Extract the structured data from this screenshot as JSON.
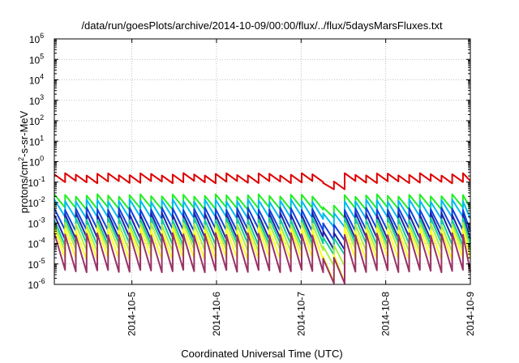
{
  "chart_data": {
    "type": "line",
    "title": "/data/run/goesPlots/archive/2014-10-09/00:00/flux/../flux/5daysMarsFluxes.txt",
    "xlabel": "Coordinated Universal Time (UTC)",
    "ylabel_main": "protons/cm",
    "ylabel_sup": "2",
    "ylabel_rest": "-s-sr-MeV",
    "y_scale": "log",
    "ylim_exp": [
      -6,
      6
    ],
    "y_ticks": [
      {
        "base": "10",
        "exp": "-6",
        "value": -6
      },
      {
        "base": "10",
        "exp": "-5",
        "value": -5
      },
      {
        "base": "10",
        "exp": "-4",
        "value": -4
      },
      {
        "base": "10",
        "exp": "-3",
        "value": -3
      },
      {
        "base": "10",
        "exp": "-2",
        "value": -2
      },
      {
        "base": "10",
        "exp": "-1",
        "value": -1
      },
      {
        "base": "10",
        "exp": "0",
        "value": 0
      },
      {
        "base": "10",
        "exp": "1",
        "value": 1
      },
      {
        "base": "10",
        "exp": "2",
        "value": 2
      },
      {
        "base": "10",
        "exp": "3",
        "value": 3
      },
      {
        "base": "10",
        "exp": "4",
        "value": 4
      },
      {
        "base": "10",
        "exp": "5",
        "value": 5
      },
      {
        "base": "10",
        "exp": "6",
        "value": 6
      }
    ],
    "xlim": [
      "2014-10-04T02:00",
      "2014-10-09T00:00"
    ],
    "x_ticks": [
      "2014-10-5",
      "2014-10-6",
      "2014-10-7",
      "2014-10-8",
      "2014-10-9"
    ],
    "grid": true,
    "sawtooth": {
      "period_hours": 3.05,
      "start": "2014-10-04T02:00",
      "dip_start": "2014-10-07T08:00",
      "dip_end": "2014-10-07T12:15",
      "note": "Each series rises sharply then decays within each ~3h orbit segment; fluxes dip near 2014-10-07 10:00"
    },
    "series": [
      {
        "color": "#dd0000",
        "peak_log": -0.62,
        "trough_log": -1.0,
        "dip_log": -1.35
      },
      {
        "color": "#22ee22",
        "peak_log": -1.65,
        "trough_log": -2.3,
        "dip_log": -2.75
      },
      {
        "color": "#00bbee",
        "peak_log": -1.9,
        "trough_log": -2.75,
        "dip_log": -3.2
      },
      {
        "color": "#1144dd",
        "peak_log": -2.3,
        "trough_log": -3.35,
        "dip_log": -3.85
      },
      {
        "color": "#2222aa",
        "peak_log": -2.55,
        "trough_log": -3.75,
        "dip_log": -4.3
      },
      {
        "color": "#11cc99",
        "peak_log": -2.8,
        "trough_log": -4.05,
        "dip_log": -4.55
      },
      {
        "color": "#aaee44",
        "peak_log": -3.05,
        "trough_log": -4.35,
        "dip_log": -5.1
      },
      {
        "color": "#ffff22",
        "peak_log": -3.3,
        "trough_log": -4.75,
        "dip_log": -5.9
      },
      {
        "color": "#993366",
        "peak_log": -3.55,
        "trough_log": -5.35,
        "dip_log": -5.95
      }
    ]
  }
}
